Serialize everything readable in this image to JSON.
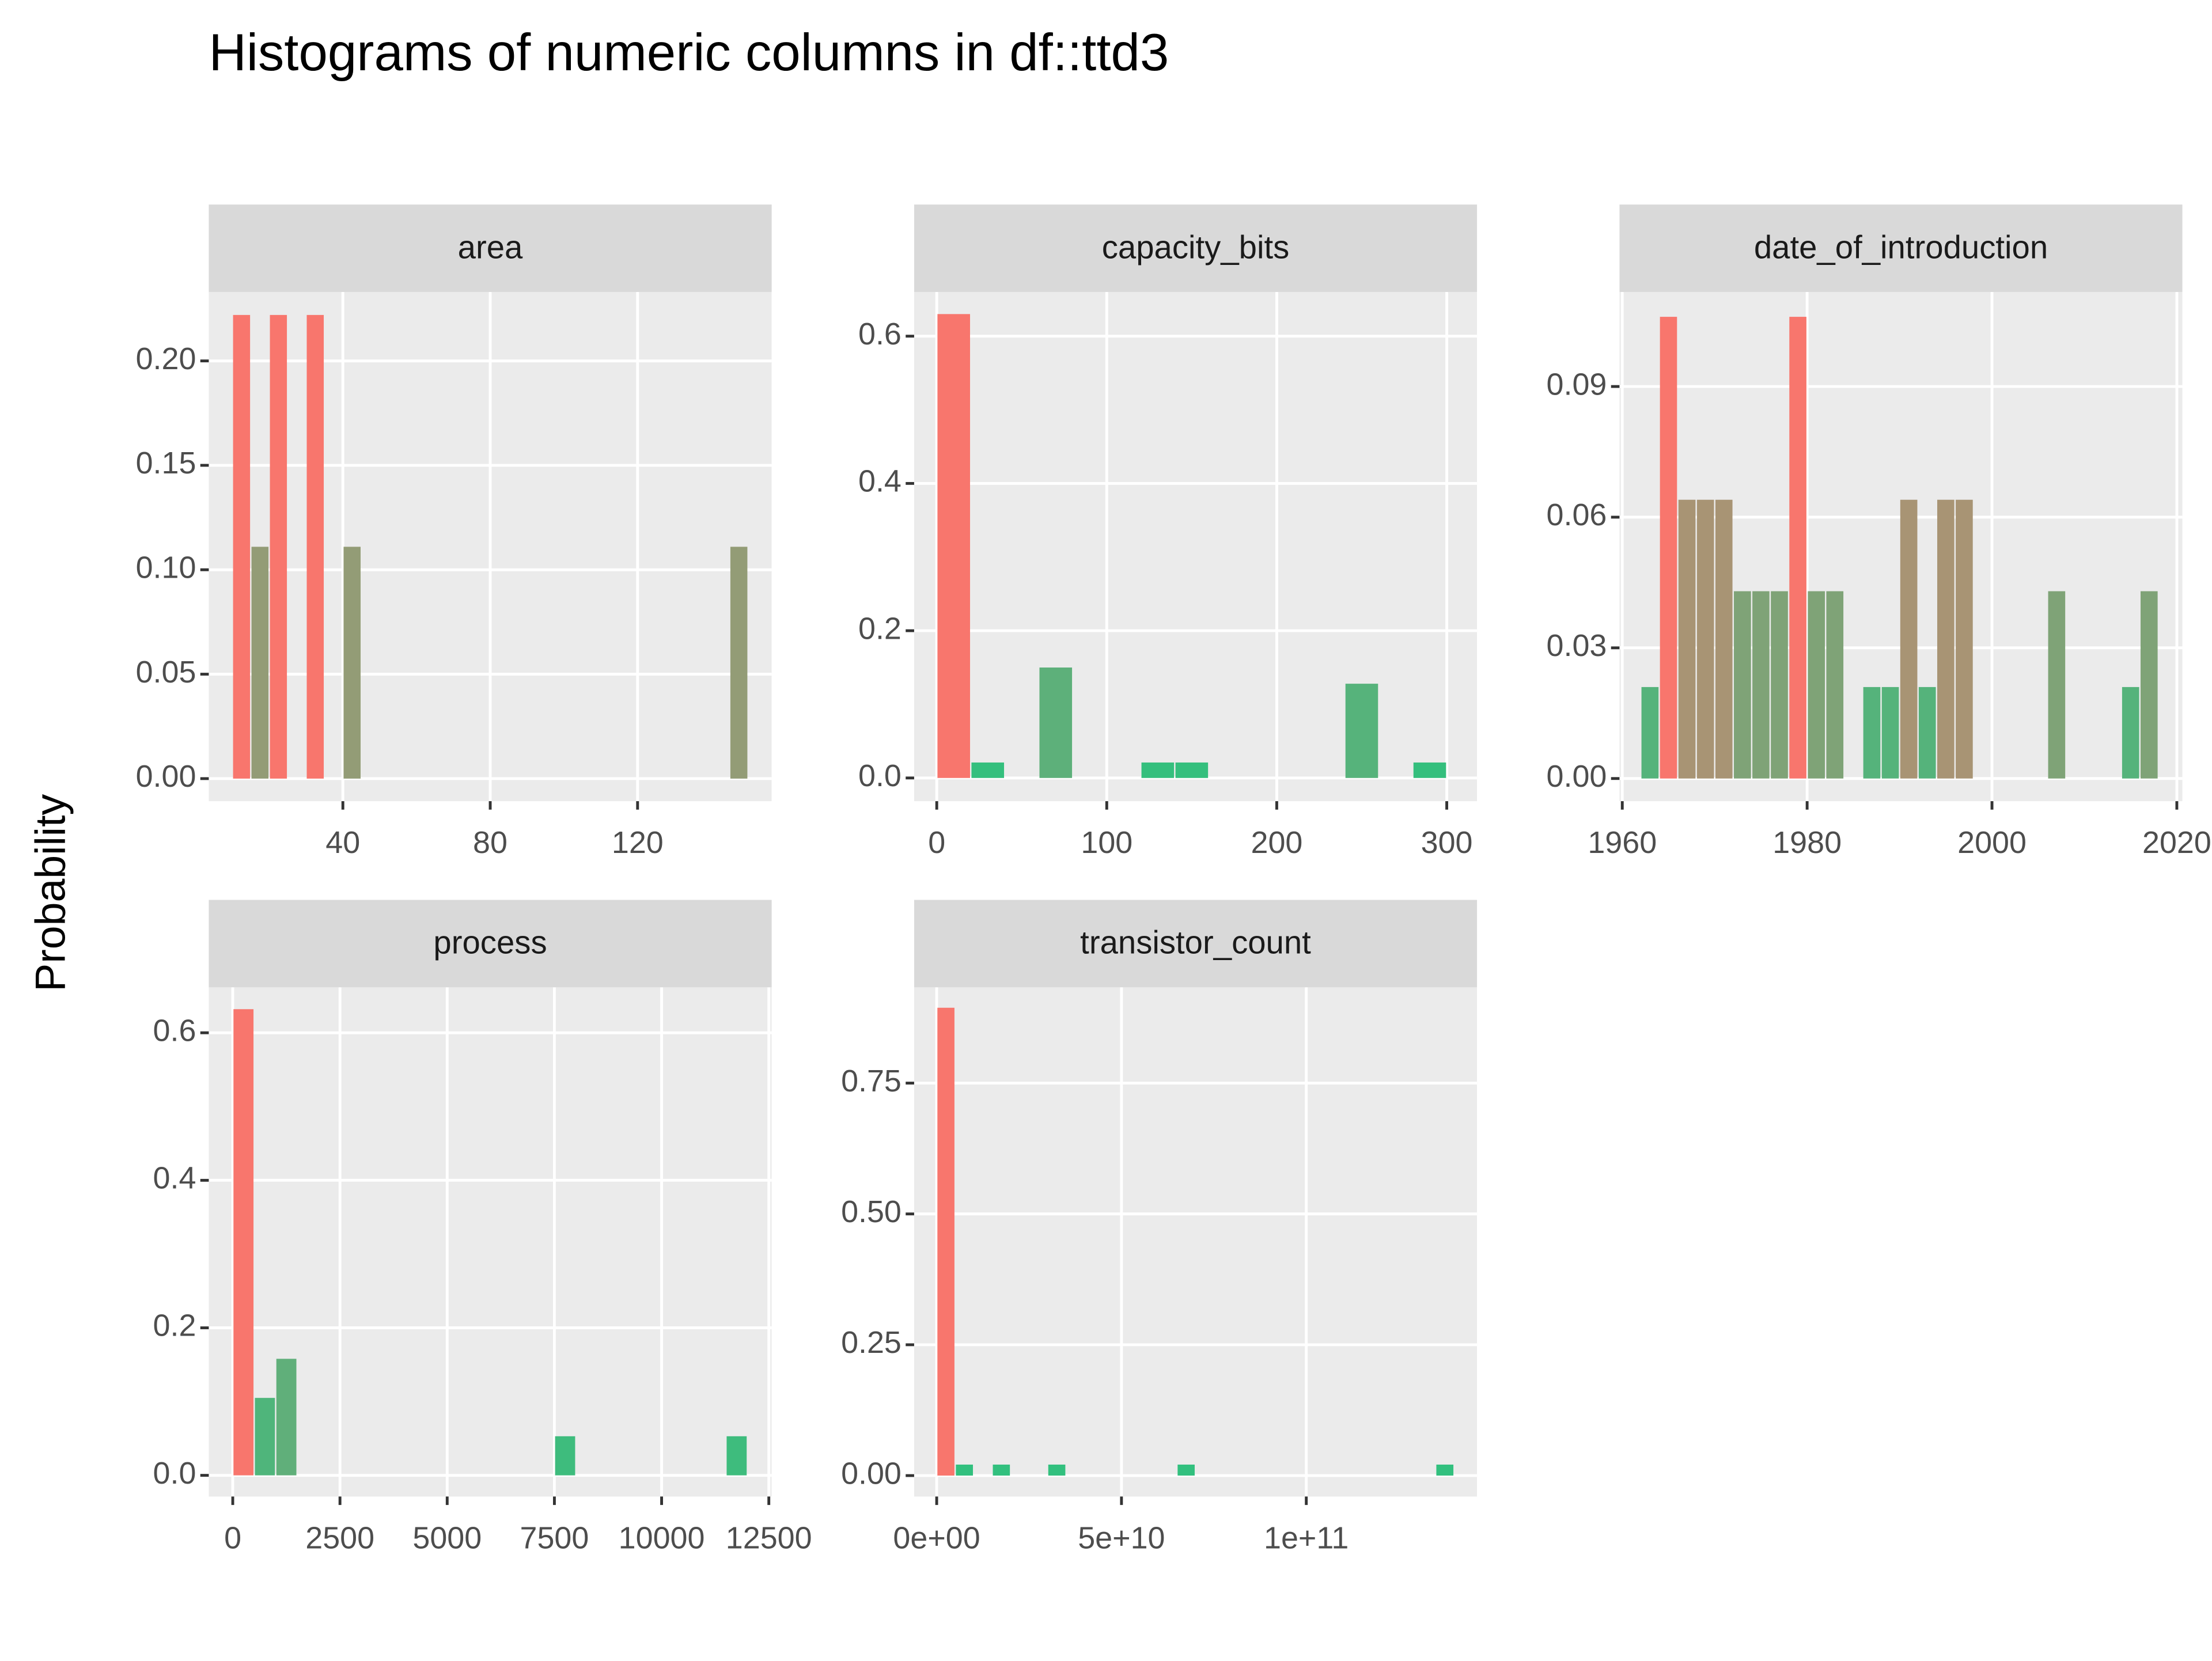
{
  "title": "Histograms of numeric columns in df::ttd3",
  "y_label": "Probability",
  "chart_data": [
    {
      "type": "histogram",
      "title": "area",
      "bins": [
        10,
        15,
        20,
        25,
        30,
        35,
        40,
        45,
        50,
        55,
        60,
        65,
        70,
        75,
        80,
        85,
        90,
        95,
        100,
        105,
        110,
        115,
        120,
        125,
        130,
        135,
        140,
        145,
        150
      ],
      "values": [
        0.222,
        0.111,
        0.222,
        0,
        0.222,
        0,
        0.111,
        0,
        0,
        0,
        0,
        0,
        0,
        0,
        0,
        0,
        0,
        0,
        0,
        0,
        0,
        0,
        0,
        0,
        0,
        0,
        0,
        0.111
      ],
      "xlim": [
        3.6,
        156.4
      ],
      "xticks": [
        40,
        80,
        120
      ],
      "ylim": [
        -0.0108,
        0.233
      ],
      "yticks": [
        {
          "value": 0,
          "label": "0.00"
        },
        {
          "value": 0.05,
          "label": "0.05"
        },
        {
          "value": 0.1,
          "label": "0.10"
        },
        {
          "value": 0.15,
          "label": "0.15"
        },
        {
          "value": 0.2,
          "label": "0.20"
        }
      ],
      "fill_low": "#2DC27E",
      "fill_high": "#F8766D",
      "grid": true
    },
    {
      "type": "histogram",
      "title": "capacity_bits",
      "bins": [
        0,
        20,
        40,
        60,
        80,
        100,
        120,
        140,
        160,
        180,
        200,
        220,
        240,
        260,
        280,
        300
      ],
      "values": [
        0.63,
        0.021,
        0,
        0.15,
        0,
        0,
        0.021,
        0.021,
        0,
        0,
        0,
        0,
        0.128,
        0,
        0.021
      ],
      "xlim": [
        -13.3,
        317.8
      ],
      "xticks": [
        0,
        100,
        200,
        300
      ],
      "ylim": [
        -0.0315,
        0.66
      ],
      "yticks": [
        {
          "value": 0,
          "label": "0.0"
        },
        0.2,
        0.4,
        0.6
      ],
      "fill_low": "#2DC27E",
      "fill_high": "#F8766D",
      "grid": true
    },
    {
      "type": "histogram",
      "title": "date_of_introduction",
      "bins": [
        1962,
        1964,
        1966,
        1968,
        1970,
        1972,
        1974,
        1976,
        1978,
        1980,
        1982,
        1984,
        1986,
        1988,
        1990,
        1992,
        1994,
        1996,
        1998,
        2000,
        2002,
        2004,
        2006,
        2008,
        2010,
        2012,
        2014,
        2016,
        2018
      ],
      "values": [
        0.021,
        0.106,
        0.064,
        0.064,
        0.064,
        0.043,
        0.043,
        0.043,
        0.106,
        0.043,
        0.043,
        0,
        0.021,
        0.021,
        0.064,
        0.021,
        0.064,
        0.064,
        0,
        0,
        0,
        0,
        0.043,
        0,
        0,
        0,
        0.021,
        0.043
      ],
      "xlim": [
        1959.7,
        2020.6
      ],
      "xticks": [
        1960,
        1980,
        2000,
        2020
      ],
      "ylim": [
        -0.0052,
        0.1117
      ],
      "yticks": [
        {
          "value": 0,
          "label": "0.00"
        },
        0.03,
        0.06,
        0.09
      ],
      "fill_low": "#2DC27E",
      "fill_high": "#F8766D",
      "grid": true
    },
    {
      "type": "histogram",
      "title": "process",
      "bins": [
        0,
        500,
        1000,
        1500,
        2000,
        2500,
        3000,
        3500,
        4000,
        4500,
        5000,
        5500,
        6000,
        6500,
        7000,
        7500,
        8000,
        8500,
        9000,
        9500,
        10000,
        10500,
        11000,
        11500,
        12000
      ],
      "values": [
        0.632,
        0.105,
        0.158,
        0,
        0,
        0,
        0,
        0,
        0,
        0,
        0,
        0,
        0,
        0,
        0,
        0.053,
        0,
        0,
        0,
        0,
        0,
        0,
        0,
        0.053
      ],
      "xlim": [
        -559,
        12566
      ],
      "xticks": [
        0,
        2500,
        5000,
        7500,
        10000,
        12500
      ],
      "ylim": [
        -0.0287,
        0.6616
      ],
      "yticks": [
        {
          "value": 0,
          "label": "0.0"
        },
        0.2,
        0.4,
        0.6
      ],
      "fill_low": "#2DC27E",
      "fill_high": "#F8766D",
      "grid": true
    },
    {
      "type": "histogram",
      "title": "transistor_count",
      "bins": [
        0,
        5000000000.0,
        10000000000.0,
        15000000000.0,
        20000000000.0,
        25000000000.0,
        30000000000.0,
        35000000000.0,
        40000000000.0,
        45000000000.0,
        50000000000.0,
        55000000000.0,
        60000000000.0,
        65000000000.0,
        70000000000.0,
        75000000000.0,
        80000000000.0,
        85000000000.0,
        90000000000.0,
        95000000000.0,
        100000000000.0,
        105000000000.0,
        110000000000.0,
        115000000000.0,
        120000000000.0,
        125000000000.0,
        130000000000.0,
        135000000000.0,
        140000000000.0
      ],
      "values": [
        0.894,
        0.021,
        0,
        0.021,
        0,
        0,
        0.021,
        0,
        0,
        0,
        0,
        0,
        0,
        0.021,
        0,
        0,
        0,
        0,
        0,
        0,
        0,
        0,
        0,
        0,
        0,
        0,
        0,
        0.021
      ],
      "xlim": [
        -6100000000.0,
        146200000000.0
      ],
      "xticks": [
        {
          "value": 0,
          "label": "0e+00"
        },
        {
          "value": 50000000000.0,
          "label": "5e+10"
        },
        {
          "value": 100000000000.0,
          "label": "1e+11"
        }
      ],
      "ylim": [
        -0.04,
        0.933
      ],
      "yticks": [
        {
          "value": 0,
          "label": "0.00"
        },
        {
          "value": 0.25,
          "label": "0.25"
        },
        {
          "value": 0.5,
          "label": "0.50"
        },
        {
          "value": 0.75,
          "label": "0.75"
        }
      ],
      "fill_low": "#2DC27E",
      "fill_high": "#F8766D",
      "grid": true
    }
  ]
}
